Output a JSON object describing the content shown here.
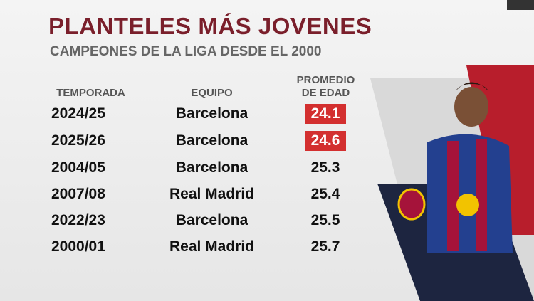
{
  "header": {
    "title": "PLANTELES MÁS JOVENES",
    "subtitle": "CAMPEONES DE LA LIGA DESDE EL 2000"
  },
  "table": {
    "columns": [
      "TEMPORADA",
      "EQUIPO",
      "PROMEDIO DE EDAD"
    ],
    "rows": [
      [
        "2024/25",
        "Barcelona",
        "24.1"
      ],
      [
        "2025/26",
        "Barcelona",
        "24.6"
      ],
      [
        "2004/05",
        "Barcelona",
        "25.3"
      ],
      [
        "2007/08",
        "Real Madrid",
        "25.4"
      ],
      [
        "2022/23",
        "Barcelona",
        "25.5"
      ],
      [
        "2000/01",
        "Real Madrid",
        "25.7"
      ]
    ]
  }
}
